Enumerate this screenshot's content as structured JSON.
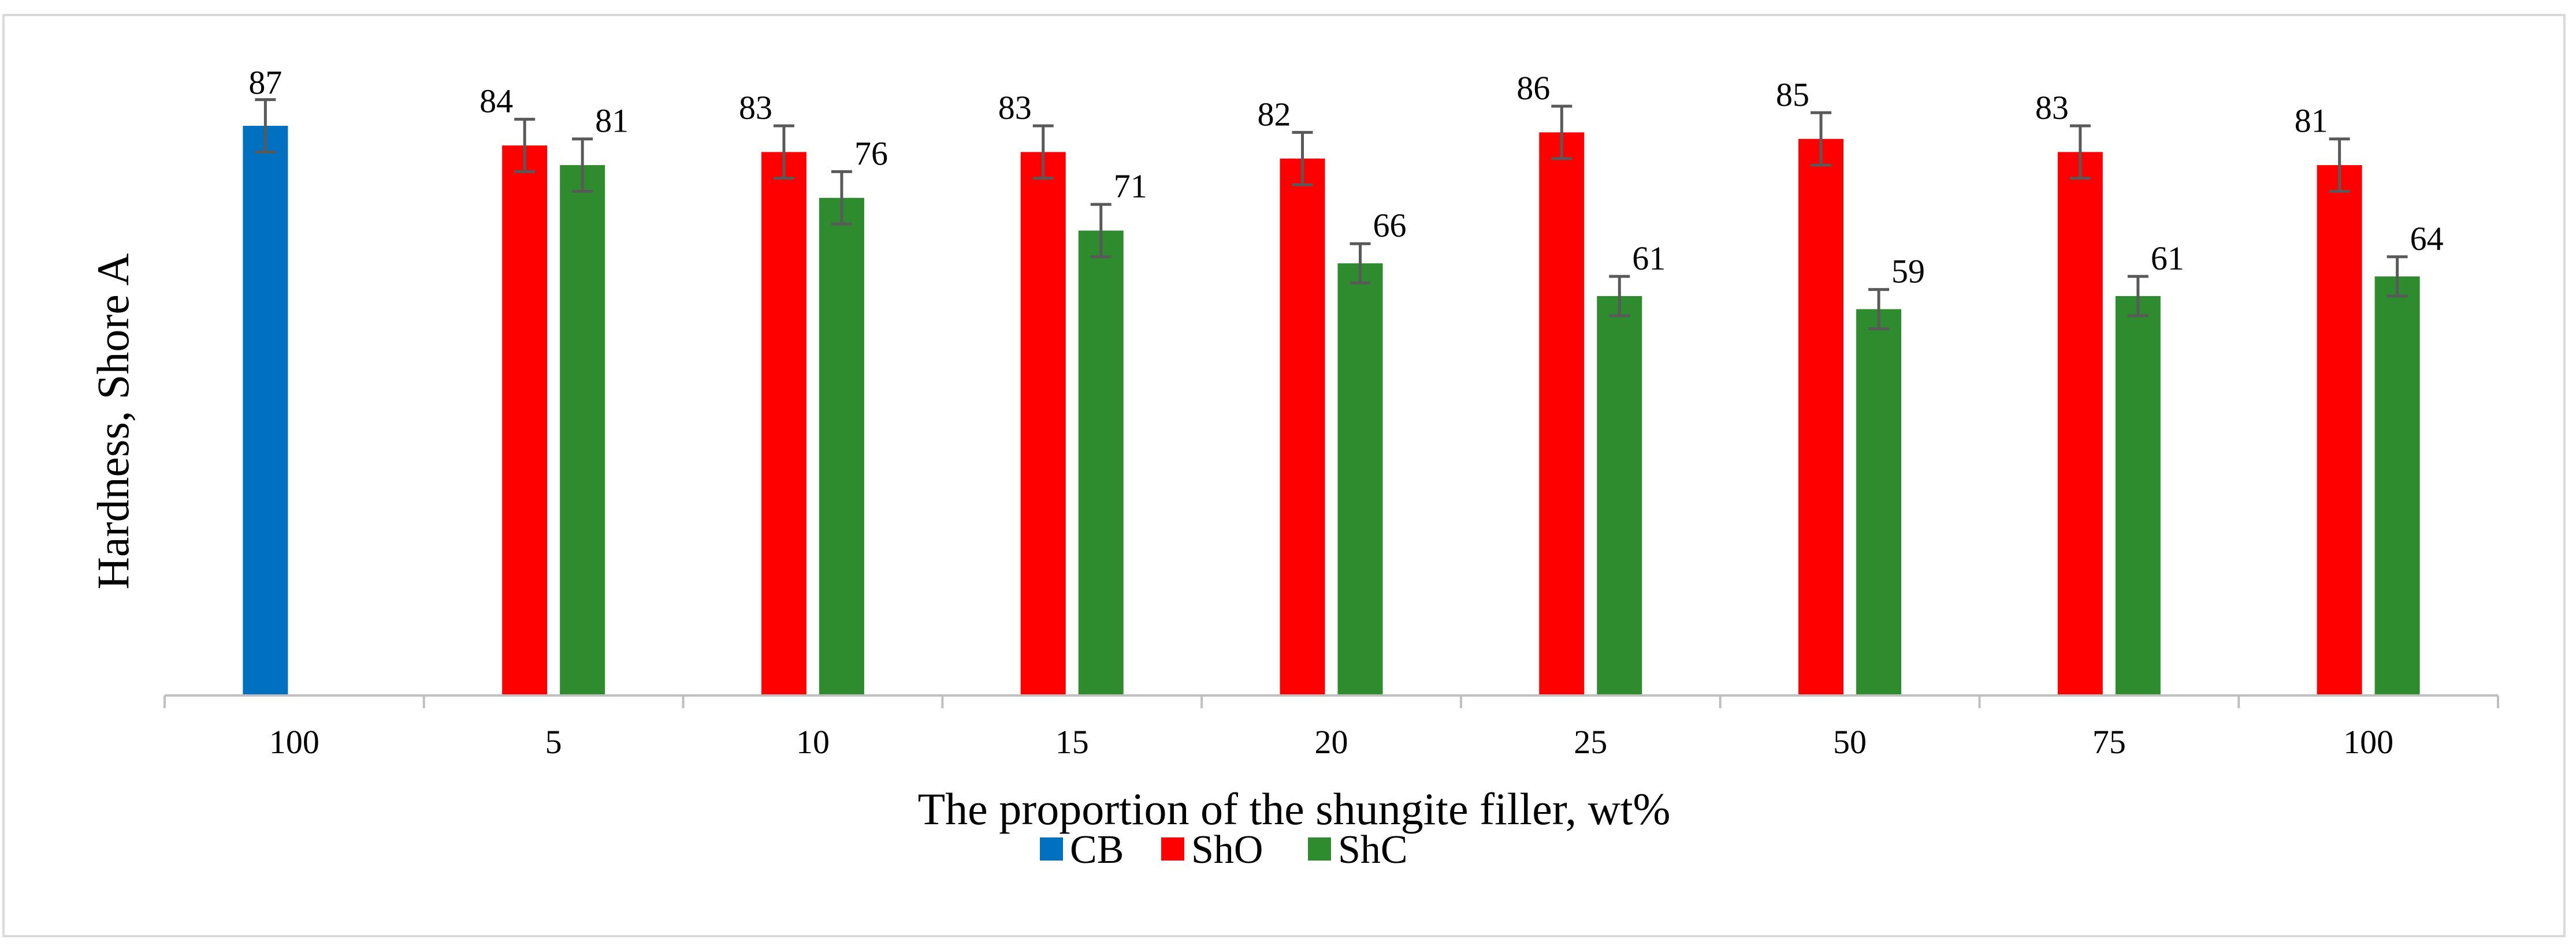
{
  "chart_data": {
    "type": "bar",
    "title": "",
    "xlabel": "The proportion of the shungite filler, wt%",
    "ylabel": "Hardness, Shore A",
    "ylim": [
      0,
      87
    ],
    "grid": false,
    "legend_position": "bottom",
    "categories": [
      "100",
      "5",
      "10",
      "15",
      "20",
      "25",
      "50",
      "75",
      "100"
    ],
    "series": [
      {
        "name": "CB",
        "color": "#0070c0",
        "values": [
          87,
          null,
          null,
          null,
          null,
          null,
          null,
          null,
          null
        ],
        "error": [
          4,
          null,
          null,
          null,
          null,
          null,
          null,
          null,
          null
        ]
      },
      {
        "name": "ShO",
        "color": "#ff0000",
        "values": [
          null,
          84,
          83,
          83,
          82,
          86,
          85,
          83,
          81
        ],
        "error": [
          null,
          4,
          4,
          4,
          4,
          4,
          4,
          4,
          4
        ]
      },
      {
        "name": "ShC",
        "color": "#2e8b2e",
        "values": [
          null,
          81,
          76,
          71,
          66,
          61,
          59,
          61,
          64
        ],
        "error": [
          null,
          4,
          4,
          4,
          3,
          3,
          3,
          3,
          3
        ]
      }
    ],
    "error_bar_color": "#595959"
  }
}
